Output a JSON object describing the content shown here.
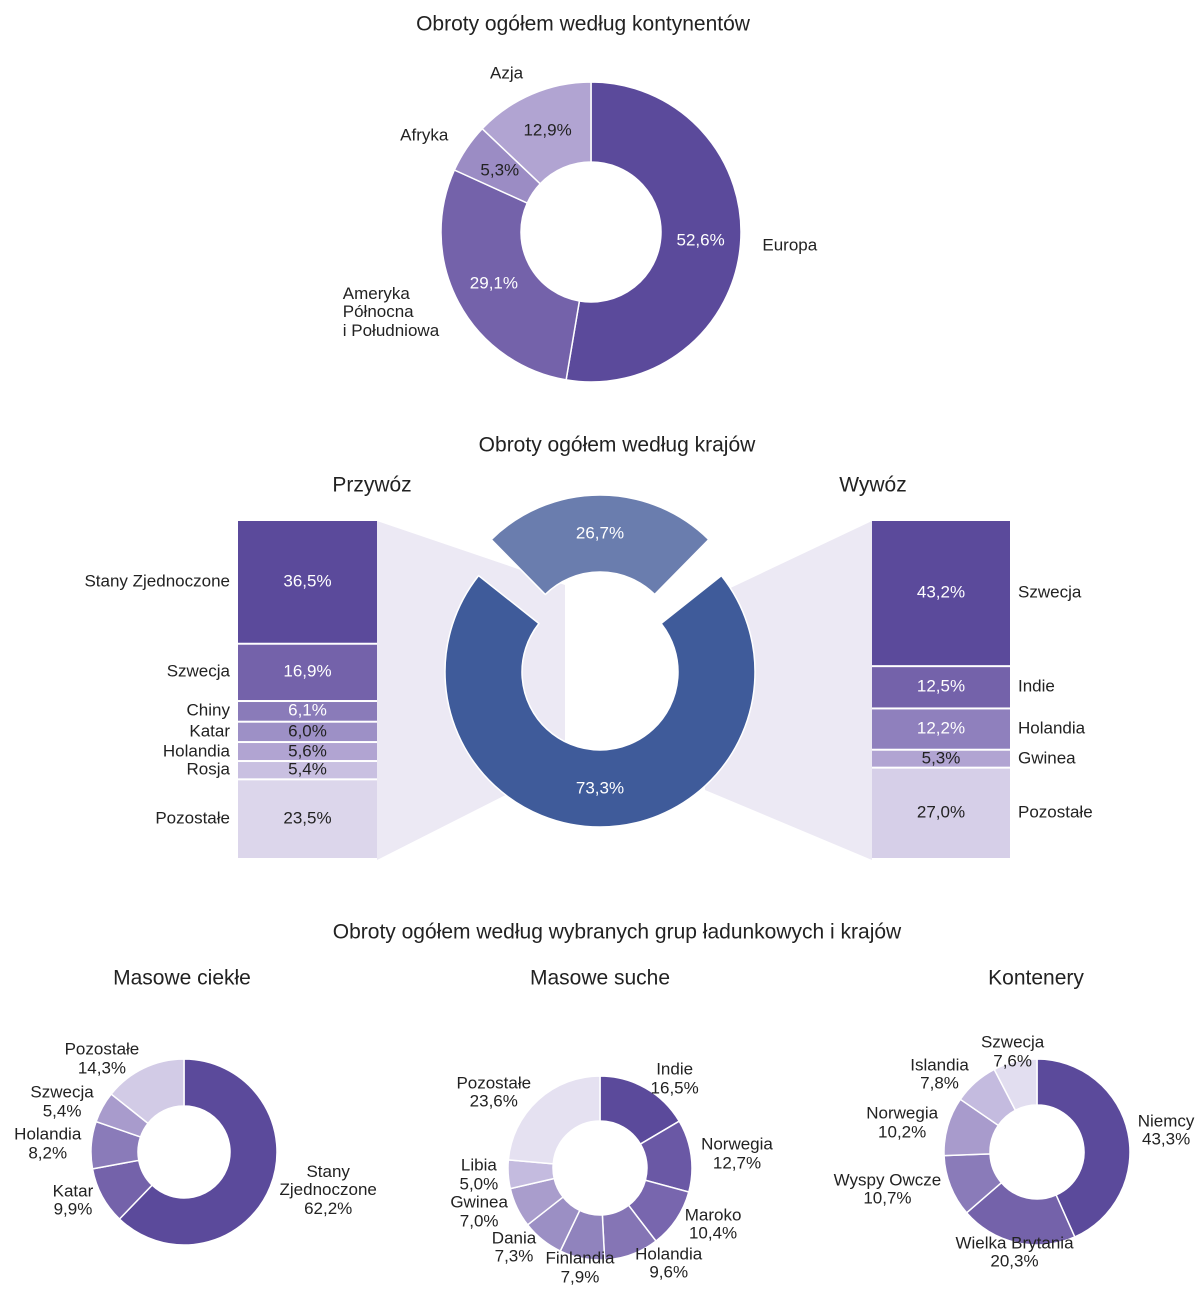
{
  "section_title": "Obroty ogółem według wybranych grup ładunkowych i krajów",
  "chart_data": [
    {
      "type": "donut",
      "title": "Obroty ogółem według kontynentów",
      "categories": [
        "Europa",
        "Ameryka\nPółnocna\ni Południowa",
        "Afryka",
        "Azja"
      ],
      "values": [
        52.6,
        29.1,
        5.3,
        12.9
      ],
      "value_labels": [
        "52,6%",
        "29,1%",
        "5,3%",
        "12,9%"
      ],
      "colors": [
        "#5b4a9b",
        "#7462aa",
        "#9b8cc4",
        "#b1a4d2"
      ]
    },
    {
      "type": "donut-breakdown",
      "title": "Obroty ogółem według krajów",
      "categories": [
        "Przywóz",
        "Wywóz"
      ],
      "values": [
        73.3,
        26.7
      ],
      "value_labels": [
        "73,3%",
        "26,7%"
      ],
      "colors": [
        "#3f5b9a",
        "#6a7dae"
      ],
      "breakdowns": [
        {
          "categories": [
            "Stany Zjednoczone",
            "Szwecja",
            "Chiny",
            "Katar",
            "Holandia",
            "Rosja",
            "Pozostałe"
          ],
          "values": [
            36.5,
            16.9,
            6.1,
            6.0,
            5.6,
            5.4,
            23.5
          ],
          "value_labels": [
            "36,5%",
            "16,9%",
            "6,1%",
            "6,0%",
            "5,6%",
            "5,4%",
            "23,5%"
          ],
          "colors": [
            "#5b4a9b",
            "#7462aa",
            "#8a7bb9",
            "#9d90c6",
            "#b1a4d2",
            "#c9c0e1",
            "#dcd6eb"
          ]
        },
        {
          "categories": [
            "Szwecja",
            "Indie",
            "Holandia",
            "Gwinea",
            "Pozostałe"
          ],
          "values": [
            43.2,
            12.5,
            12.2,
            5.3,
            27.0
          ],
          "value_labels": [
            "43,2%",
            "12,5%",
            "12,2%",
            "5,3%",
            "27,0%"
          ],
          "colors": [
            "#5b4a9b",
            "#7462aa",
            "#8f80bd",
            "#b1a4d2",
            "#d6cfe8"
          ]
        }
      ]
    },
    {
      "type": "donut-outside",
      "title": "Masowe ciekłe",
      "categories": [
        "Stany\nZjednoczone",
        "Katar",
        "Holandia",
        "Szwecja",
        "Pozostałe"
      ],
      "values": [
        62.2,
        9.9,
        8.2,
        5.4,
        14.3
      ],
      "value_labels": [
        "62,2%",
        "9,9%",
        "8,2%",
        "5,4%",
        "14,3%"
      ],
      "colors": [
        "#5b4a9b",
        "#7462aa",
        "#8a7bb9",
        "#a89bcc",
        "#d2cbe6"
      ]
    },
    {
      "type": "donut-outside",
      "title": "Masowe suche",
      "categories": [
        "Indie",
        "Norwegia",
        "Maroko",
        "Holandia",
        "Finlandia",
        "Dania",
        "Gwinea",
        "Libia",
        "Pozostałe"
      ],
      "values": [
        16.5,
        12.7,
        10.4,
        9.6,
        7.9,
        7.3,
        7.0,
        5.0,
        23.6
      ],
      "value_labels": [
        "16,5%",
        "12,7%",
        "10,4%",
        "9,6%",
        "7,9%",
        "7,3%",
        "7,0%",
        "5,0%",
        "23,6%"
      ],
      "colors": [
        "#5b4a9b",
        "#6a58a5",
        "#7866ae",
        "#8575b5",
        "#9083bd",
        "#9b8fc4",
        "#a99dcc",
        "#c4bbdf",
        "#e5e1f1"
      ]
    },
    {
      "type": "donut-outside",
      "title": "Kontenery",
      "categories": [
        "Niemcy",
        "Wielka Brytania",
        "Wyspy Owcze",
        "Norwegia",
        "Islandia",
        "Szwecja"
      ],
      "values": [
        43.3,
        20.3,
        10.7,
        10.2,
        7.8,
        7.6
      ],
      "value_labels": [
        "43,3%",
        "20,3%",
        "10,7%",
        "10,2%",
        "7,8%",
        "7,6%"
      ],
      "colors": [
        "#5b4a9b",
        "#7462aa",
        "#8a7bb9",
        "#a89bcc",
        "#c4bbdf",
        "#e2def0"
      ]
    }
  ]
}
